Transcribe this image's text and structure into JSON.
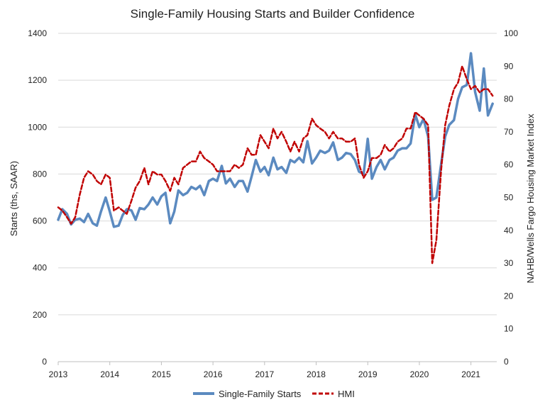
{
  "chart_data": {
    "type": "line",
    "title": "Single-Family Housing Starts and Builder Confidence",
    "xlabel": "",
    "x_ticks": [
      "2013",
      "2014",
      "2015",
      "2016",
      "2017",
      "2018",
      "2019",
      "2020",
      "2021"
    ],
    "xlim": [
      2013,
      2021.5
    ],
    "ylabel_left": "Starts (ths, SAAR)",
    "ylim_left": [
      0,
      1400
    ],
    "y_ticks_left": [
      "0",
      "200",
      "400",
      "600",
      "800",
      "1000",
      "1200",
      "1400"
    ],
    "ylabel_right": "NAHB/Wells Fargo Housing Market Index",
    "ylim_right": [
      0,
      100
    ],
    "y_ticks_right": [
      "0",
      "10",
      "20",
      "30",
      "40",
      "50",
      "60",
      "70",
      "80",
      "90",
      "100"
    ],
    "grid": true,
    "legend_position": "bottom",
    "colors": {
      "starts": "#5b8ac0",
      "hmi": "#c00000"
    },
    "series": [
      {
        "name": "Single-Family Starts",
        "axis": "left",
        "style": "solid",
        "points": [
          [
            2013.0,
            605
          ],
          [
            2013.08,
            650
          ],
          [
            2013.17,
            630
          ],
          [
            2013.25,
            585
          ],
          [
            2013.33,
            605
          ],
          [
            2013.42,
            610
          ],
          [
            2013.5,
            595
          ],
          [
            2013.58,
            630
          ],
          [
            2013.67,
            590
          ],
          [
            2013.75,
            580
          ],
          [
            2013.83,
            640
          ],
          [
            2013.92,
            700
          ],
          [
            2014.0,
            640
          ],
          [
            2014.08,
            575
          ],
          [
            2014.17,
            580
          ],
          [
            2014.25,
            625
          ],
          [
            2014.33,
            650
          ],
          [
            2014.42,
            645
          ],
          [
            2014.5,
            605
          ],
          [
            2014.58,
            655
          ],
          [
            2014.67,
            650
          ],
          [
            2014.75,
            670
          ],
          [
            2014.83,
            700
          ],
          [
            2014.92,
            670
          ],
          [
            2015.0,
            705
          ],
          [
            2015.08,
            720
          ],
          [
            2015.17,
            590
          ],
          [
            2015.25,
            640
          ],
          [
            2015.33,
            730
          ],
          [
            2015.42,
            710
          ],
          [
            2015.5,
            720
          ],
          [
            2015.58,
            745
          ],
          [
            2015.67,
            735
          ],
          [
            2015.75,
            750
          ],
          [
            2015.83,
            710
          ],
          [
            2015.92,
            770
          ],
          [
            2016.0,
            780
          ],
          [
            2016.08,
            770
          ],
          [
            2016.17,
            835
          ],
          [
            2016.25,
            760
          ],
          [
            2016.33,
            780
          ],
          [
            2016.42,
            745
          ],
          [
            2016.5,
            770
          ],
          [
            2016.58,
            770
          ],
          [
            2016.67,
            725
          ],
          [
            2016.75,
            790
          ],
          [
            2016.83,
            860
          ],
          [
            2016.92,
            810
          ],
          [
            2017.0,
            830
          ],
          [
            2017.08,
            795
          ],
          [
            2017.17,
            870
          ],
          [
            2017.25,
            820
          ],
          [
            2017.33,
            830
          ],
          [
            2017.42,
            805
          ],
          [
            2017.5,
            860
          ],
          [
            2017.58,
            850
          ],
          [
            2017.67,
            870
          ],
          [
            2017.75,
            850
          ],
          [
            2017.83,
            940
          ],
          [
            2017.92,
            845
          ],
          [
            2018.0,
            870
          ],
          [
            2018.08,
            900
          ],
          [
            2018.17,
            890
          ],
          [
            2018.25,
            900
          ],
          [
            2018.33,
            935
          ],
          [
            2018.42,
            860
          ],
          [
            2018.5,
            870
          ],
          [
            2018.58,
            890
          ],
          [
            2018.67,
            885
          ],
          [
            2018.75,
            860
          ],
          [
            2018.83,
            810
          ],
          [
            2018.92,
            800
          ],
          [
            2019.0,
            950
          ],
          [
            2019.08,
            780
          ],
          [
            2019.17,
            830
          ],
          [
            2019.25,
            860
          ],
          [
            2019.33,
            820
          ],
          [
            2019.42,
            860
          ],
          [
            2019.5,
            870
          ],
          [
            2019.58,
            900
          ],
          [
            2019.67,
            910
          ],
          [
            2019.75,
            910
          ],
          [
            2019.83,
            930
          ],
          [
            2019.92,
            1055
          ],
          [
            2020.0,
            1000
          ],
          [
            2020.08,
            1035
          ],
          [
            2020.17,
            960
          ],
          [
            2020.25,
            690
          ],
          [
            2020.33,
            700
          ],
          [
            2020.42,
            840
          ],
          [
            2020.5,
            960
          ],
          [
            2020.58,
            1010
          ],
          [
            2020.67,
            1030
          ],
          [
            2020.75,
            1120
          ],
          [
            2020.83,
            1170
          ],
          [
            2020.92,
            1180
          ],
          [
            2021.0,
            1315
          ],
          [
            2021.08,
            1150
          ],
          [
            2021.17,
            1070
          ],
          [
            2021.25,
            1250
          ],
          [
            2021.33,
            1050
          ],
          [
            2021.42,
            1100
          ]
        ]
      },
      {
        "name": "HMI",
        "axis": "right",
        "style": "dashed",
        "points": [
          [
            2013.0,
            47
          ],
          [
            2013.08,
            46
          ],
          [
            2013.17,
            44
          ],
          [
            2013.25,
            42
          ],
          [
            2013.33,
            44
          ],
          [
            2013.42,
            51
          ],
          [
            2013.5,
            56
          ],
          [
            2013.58,
            58
          ],
          [
            2013.67,
            57
          ],
          [
            2013.75,
            55
          ],
          [
            2013.83,
            54
          ],
          [
            2013.92,
            57
          ],
          [
            2014.0,
            56
          ],
          [
            2014.08,
            46
          ],
          [
            2014.17,
            47
          ],
          [
            2014.25,
            46
          ],
          [
            2014.33,
            45
          ],
          [
            2014.42,
            49
          ],
          [
            2014.5,
            53
          ],
          [
            2014.58,
            55
          ],
          [
            2014.67,
            59
          ],
          [
            2014.75,
            54
          ],
          [
            2014.83,
            58
          ],
          [
            2014.92,
            57
          ],
          [
            2015.0,
            57
          ],
          [
            2015.08,
            55
          ],
          [
            2015.17,
            52
          ],
          [
            2015.25,
            56
          ],
          [
            2015.33,
            54
          ],
          [
            2015.42,
            59
          ],
          [
            2015.5,
            60
          ],
          [
            2015.58,
            61
          ],
          [
            2015.67,
            61
          ],
          [
            2015.75,
            64
          ],
          [
            2015.83,
            62
          ],
          [
            2015.92,
            61
          ],
          [
            2016.0,
            60
          ],
          [
            2016.08,
            58
          ],
          [
            2016.17,
            58
          ],
          [
            2016.25,
            58
          ],
          [
            2016.33,
            58
          ],
          [
            2016.42,
            60
          ],
          [
            2016.5,
            59
          ],
          [
            2016.58,
            60
          ],
          [
            2016.67,
            65
          ],
          [
            2016.75,
            63
          ],
          [
            2016.83,
            63
          ],
          [
            2016.92,
            69
          ],
          [
            2017.0,
            67
          ],
          [
            2017.08,
            65
          ],
          [
            2017.17,
            71
          ],
          [
            2017.25,
            68
          ],
          [
            2017.33,
            70
          ],
          [
            2017.42,
            67
          ],
          [
            2017.5,
            64
          ],
          [
            2017.58,
            67
          ],
          [
            2017.67,
            64
          ],
          [
            2017.75,
            68
          ],
          [
            2017.83,
            69
          ],
          [
            2017.92,
            74
          ],
          [
            2018.0,
            72
          ],
          [
            2018.08,
            71
          ],
          [
            2018.17,
            70
          ],
          [
            2018.25,
            68
          ],
          [
            2018.33,
            70
          ],
          [
            2018.42,
            68
          ],
          [
            2018.5,
            68
          ],
          [
            2018.58,
            67
          ],
          [
            2018.67,
            67
          ],
          [
            2018.75,
            68
          ],
          [
            2018.83,
            60
          ],
          [
            2018.92,
            56
          ],
          [
            2019.0,
            58
          ],
          [
            2019.08,
            62
          ],
          [
            2019.17,
            62
          ],
          [
            2019.25,
            63
          ],
          [
            2019.33,
            66
          ],
          [
            2019.42,
            64
          ],
          [
            2019.5,
            65
          ],
          [
            2019.58,
            67
          ],
          [
            2019.67,
            68
          ],
          [
            2019.75,
            71
          ],
          [
            2019.83,
            71
          ],
          [
            2019.92,
            76
          ],
          [
            2020.0,
            75
          ],
          [
            2020.08,
            74
          ],
          [
            2020.17,
            72
          ],
          [
            2020.25,
            30
          ],
          [
            2020.33,
            37
          ],
          [
            2020.42,
            58
          ],
          [
            2020.5,
            72
          ],
          [
            2020.58,
            78
          ],
          [
            2020.67,
            83
          ],
          [
            2020.75,
            85
          ],
          [
            2020.83,
            90
          ],
          [
            2020.92,
            86
          ],
          [
            2021.0,
            83
          ],
          [
            2021.08,
            84
          ],
          [
            2021.17,
            82
          ],
          [
            2021.25,
            83
          ],
          [
            2021.33,
            83
          ],
          [
            2021.42,
            81
          ]
        ]
      }
    ]
  }
}
